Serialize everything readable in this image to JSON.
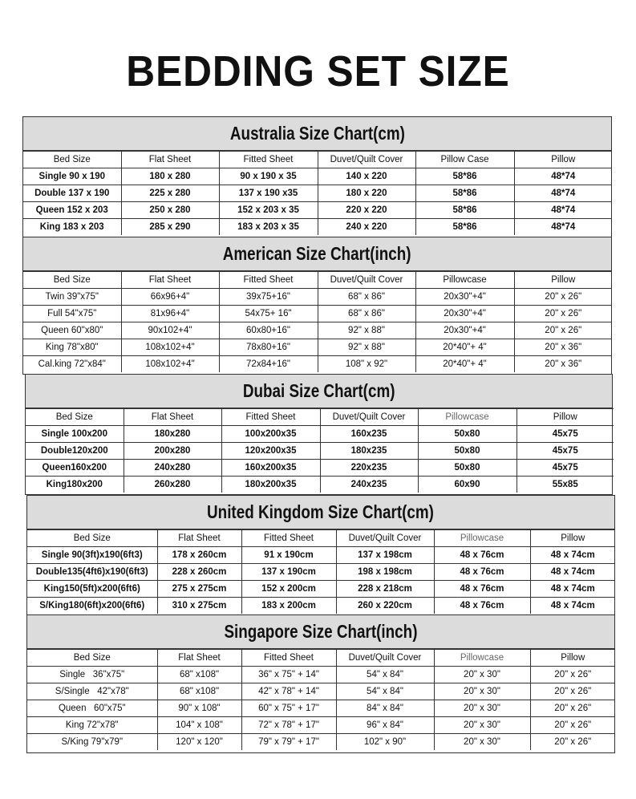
{
  "title": "BEDDING SET SIZE",
  "charts": [
    {
      "title": "Australia Size Chart(cm)",
      "headers": [
        "Bed Size",
        "Flat Sheet",
        "Fitted Sheet",
        "Duvet/Quilt Cover",
        "Pillow Case",
        "Pillow"
      ],
      "rows": [
        [
          "Single 90 x 190",
          "180 x 280",
          "90 x 190 x 35",
          "140 x 220",
          "58*86",
          "48*74"
        ],
        [
          "Double 137 x 190",
          "225 x 280",
          "137 x 190 x35",
          "180 x 220",
          "58*86",
          "48*74"
        ],
        [
          "Queen 152 x 203",
          "250 x 280",
          "152 x 203 x 35",
          "220 x 220",
          "58*86",
          "48*74"
        ],
        [
          "King 183 x 203",
          "285 x 290",
          "183 x 203 x 35",
          "240 x 220",
          "58*86",
          "48*74"
        ]
      ]
    },
    {
      "title": "American Size Chart(inch)",
      "headers": [
        "Bed Size",
        "Flat Sheet",
        "Fitted Sheet",
        "Duvet/Quilt Cover",
        "Pillowcase",
        "Pillow"
      ],
      "rows": [
        [
          "Twin 39\"x75\"",
          "66x96+4\"",
          "39x75+16\"",
          "68\" x 86\"",
          "20x30\"+4\"",
          "20\" x 26\""
        ],
        [
          "Full 54\"x75\"",
          "81x96+4\"",
          "54x75+ 16\"",
          "68\" x 86\"",
          "20x30\"+4\"",
          "20\" x 26\""
        ],
        [
          "Queen 60\"x80\"",
          "90x102+4\"",
          "60x80+16\"",
          "92\" x 88\"",
          "20x30\"+4\"",
          "20\" x 26\""
        ],
        [
          "King 78\"x80\"",
          "108x102+4\"",
          "78x80+16\"",
          "92\" x 88\"",
          "20*40\"+ 4\"",
          "20\" x 36\""
        ],
        [
          "Cal.king 72\"x84\"",
          "108x102+4\"",
          "72x84+16\"",
          "108\" x 92\"",
          "20*40\"+ 4\"",
          "20\" x 36\""
        ]
      ]
    },
    {
      "title": "Dubai Size Chart(cm)",
      "headers": [
        "Bed Size",
        "Flat Sheet",
        "Fitted Sheet",
        "Duvet/Quilt Cover",
        "Pillowcase",
        "Pillow"
      ],
      "rows": [
        [
          "Single 100x200",
          "180x280",
          "100x200x35",
          "160x235",
          "50x80",
          "45x75"
        ],
        [
          "Double120x200",
          "200x280",
          "120x200x35",
          "180x235",
          "50x80",
          "45x75"
        ],
        [
          "Queen160x200",
          "240x280",
          "160x200x35",
          "220x235",
          "50x80",
          "45x75"
        ],
        [
          "King180x200",
          "260x280",
          "180x200x35",
          "240x235",
          "60x90",
          "55x85"
        ]
      ]
    },
    {
      "title": "United Kingdom Size Chart(cm)",
      "headers": [
        "Bed Size",
        "Flat Sheet",
        "Fitted Sheet",
        "Duvet/Quilt Cover",
        "Pillowcase",
        "Pillow"
      ],
      "rows": [
        [
          "Single 90(3ft)x190(6ft3)",
          "178 x 260cm",
          "91 x 190cm",
          "137 x 198cm",
          "48 x 76cm",
          "48 x 74cm"
        ],
        [
          "Double135(4ft6)x190(6ft3)",
          "228 x 260cm",
          "137 x 190cm",
          "198 x 198cm",
          "48 x 76cm",
          "48 x 74cm"
        ],
        [
          "King150(5ft)x200(6ft6)",
          "275 x 275cm",
          "152 x 200cm",
          "228 x 218cm",
          "48 x 76cm",
          "48 x 74cm"
        ],
        [
          "S/King180(6ft)x200(6ft6)",
          "310 x 275cm",
          "183 x 200cm",
          "260 x 220cm",
          "48 x 76cm",
          "48 x 74cm"
        ]
      ]
    },
    {
      "title": "Singapore Size Chart(inch)",
      "headers": [
        "Bed Size",
        "Flat Sheet",
        "Fitted Sheet",
        "Duvet/Quilt Cover",
        "Pillowcase",
        "Pillow"
      ],
      "rows": [
        [
          "Single   36\"x75\"",
          "68\" x108\"",
          "36\" x 75\" + 14\"",
          "54\" x 84\"",
          "20\" x 30\"",
          "20\" x 26\""
        ],
        [
          "S/Single   42\"x78\"",
          "68\" x108\"",
          "42\" x 78\" + 14\"",
          "54\" x 84\"",
          "20\" x 30\"",
          "20\" x 26\""
        ],
        [
          "Queen   60\"x75\"",
          "90\" x 108\"",
          "60\" x 75\" + 17\"",
          "84\" x 84\"",
          "20\" x 30\"",
          "20\" x 26\""
        ],
        [
          "King 72\"x78\"",
          "104\" x 108\"",
          "72\" x 78\" + 17\"",
          "96\" x 84\"",
          "20\" x 30\"",
          "20\" x 26\""
        ],
        [
          "S/King 79\"x79\"",
          "120\" x 120\"",
          "79\" x 79\" + 17\"",
          "102\" x 90\"",
          "20\" x 30\"",
          "20\" x 26\""
        ]
      ]
    }
  ]
}
